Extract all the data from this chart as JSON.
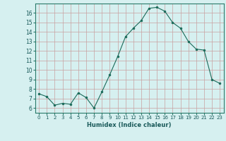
{
  "x": [
    0,
    1,
    2,
    3,
    4,
    5,
    6,
    7,
    8,
    9,
    10,
    11,
    12,
    13,
    14,
    15,
    16,
    17,
    18,
    19,
    20,
    21,
    22,
    23
  ],
  "y": [
    7.5,
    7.2,
    6.3,
    6.5,
    6.4,
    7.6,
    7.1,
    6.0,
    7.7,
    9.5,
    11.4,
    13.5,
    14.4,
    15.2,
    16.5,
    16.6,
    16.2,
    15.0,
    14.4,
    13.0,
    12.2,
    12.1,
    9.0,
    8.6
  ],
  "xlim": [
    -0.5,
    23.5
  ],
  "ylim": [
    5.5,
    17.0
  ],
  "yticks": [
    6,
    7,
    8,
    9,
    10,
    11,
    12,
    13,
    14,
    15,
    16
  ],
  "xticks": [
    0,
    1,
    2,
    3,
    4,
    5,
    6,
    7,
    8,
    9,
    10,
    11,
    12,
    13,
    14,
    15,
    16,
    17,
    18,
    19,
    20,
    21,
    22,
    23
  ],
  "xlabel": "Humidex (Indice chaleur)",
  "line_color": "#1a6b5a",
  "marker_color": "#1a6b5a",
  "bg_color": "#d6f0f0",
  "grid_color_major": "#c8a0a0",
  "grid_color_minor": "#c8a0a0"
}
